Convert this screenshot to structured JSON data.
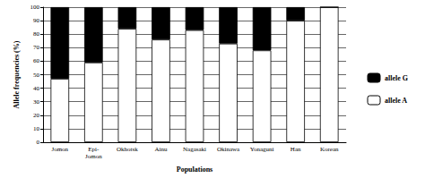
{
  "chart_data": {
    "type": "bar",
    "stacked": true,
    "x_label": "Populations",
    "y_label": "Allele frequencies (%)",
    "categories": [
      "Jomon",
      "Epi-Jomon",
      "Okhotsk",
      "Ainu",
      "Nagasaki",
      "Okinawa",
      "Yonaguni",
      "Han",
      "Korean"
    ],
    "series": [
      {
        "name": "allele A",
        "color": "#ffffff",
        "values": [
          47,
          59,
          84,
          76,
          83,
          73,
          68,
          90,
          100
        ]
      },
      {
        "name": "allele G",
        "color": "#000000",
        "values": [
          53,
          41,
          16,
          24,
          17,
          27,
          32,
          10,
          0
        ]
      }
    ],
    "ylim": [
      0,
      100
    ],
    "yticks": [
      0,
      10,
      20,
      30,
      40,
      50,
      60,
      70,
      80,
      90,
      100
    ],
    "grid": true,
    "legend": "right"
  }
}
